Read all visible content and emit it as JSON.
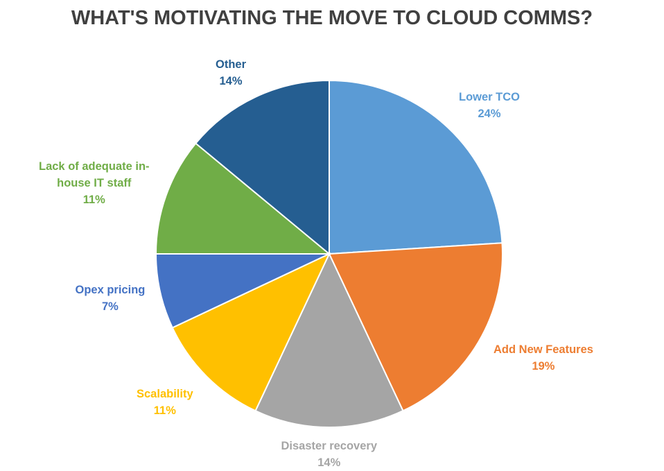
{
  "chart_data": {
    "type": "pie",
    "title": "WHAT'S MOTIVATING THE MOVE TO CLOUD COMMS?",
    "slices": [
      {
        "label": "Lower TCO",
        "label_lines": [
          "Lower TCO"
        ],
        "value": 24,
        "value_text": "24%",
        "color": "#5B9BD5"
      },
      {
        "label": "Add New Features",
        "label_lines": [
          "Add New Features"
        ],
        "value": 19,
        "value_text": "19%",
        "color": "#ED7D31"
      },
      {
        "label": "Disaster recovery",
        "label_lines": [
          "Disaster recovery"
        ],
        "value": 14,
        "value_text": "14%",
        "color": "#A5A5A5"
      },
      {
        "label": "Scalability",
        "label_lines": [
          "Scalability"
        ],
        "value": 11,
        "value_text": "11%",
        "color": "#FFC000"
      },
      {
        "label": "Opex pricing",
        "label_lines": [
          "Opex pricing"
        ],
        "value": 7,
        "value_text": "7%",
        "color": "#4472C4"
      },
      {
        "label": "Lack of adequate in-house IT staff",
        "label_lines": [
          "Lack of adequate in-",
          "house IT staff"
        ],
        "value": 11,
        "value_text": "11%",
        "color": "#70AD47"
      },
      {
        "label": "Other",
        "label_lines": [
          "Other"
        ],
        "value": 14,
        "value_text": "14%",
        "color": "#255E91"
      }
    ],
    "legend": "none",
    "label_placement": "outside"
  }
}
